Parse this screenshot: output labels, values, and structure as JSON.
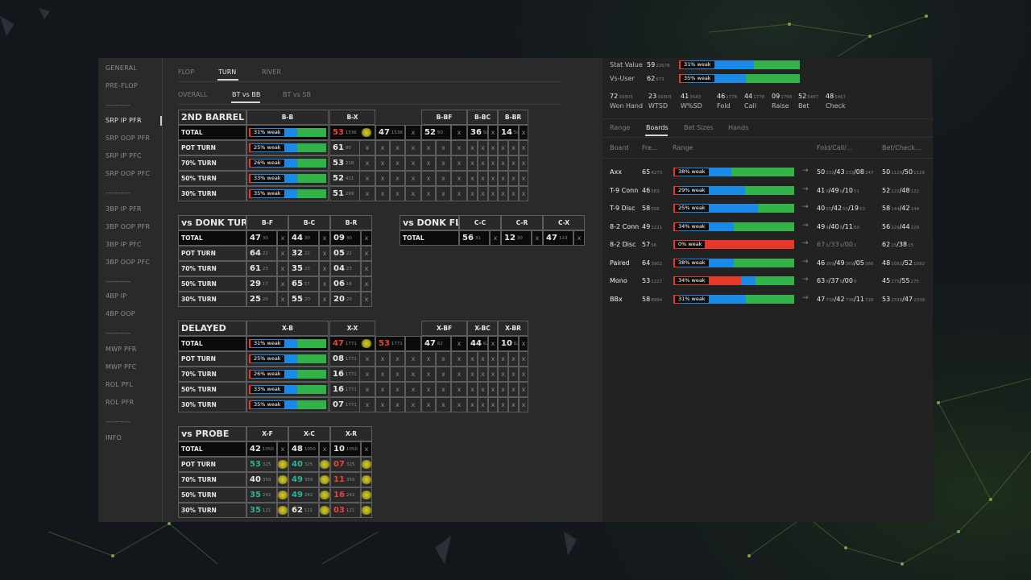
{
  "sidebar": {
    "items": [
      "GENERAL",
      "PRE-FLOP",
      "----------",
      "SRP IP PFR",
      "SRP OOP PFR",
      "SRP IP PFC",
      "SRP OOP PFC",
      "----------",
      "3BP IP PFR",
      "3BP OOP PFR",
      "3BP IP PFC",
      "3BP OOP PFC",
      "----------",
      "4BP IP",
      "4BP OOP",
      "----------",
      "MWP PFR",
      "MWP PFC",
      "ROL PFL",
      "ROL PFR",
      "----------",
      "INFO"
    ],
    "active": "SRP IP PFR"
  },
  "street_tabs": {
    "items": [
      "FLOP",
      "TURN",
      "RIVER"
    ],
    "active": "TURN"
  },
  "matchup_tabs": {
    "items": [
      "OVERALL",
      "BT vs BB",
      "BT vs SB"
    ],
    "active": "BT vs BB"
  },
  "tables": {
    "second_barrel": {
      "title": "2ND BARREL",
      "headers": [
        "B-B",
        "B-X",
        "B-BF",
        "B-BC",
        "B-BR"
      ],
      "rows": [
        {
          "label": "TOTAL",
          "range": {
            "text": "31% weak",
            "r": 0.05,
            "b": 0.57,
            "g": 0.38
          },
          "bb": {
            "v": "53",
            "s": "1536"
          },
          "bx": {
            "v": "47",
            "s": "1536"
          },
          "bbf": {
            "v": "52",
            "s": "50"
          },
          "bbc": {
            "v": "36",
            "s": "50"
          },
          "bbr": {
            "v": "14",
            "s": "50"
          }
        },
        {
          "label": "POT TURN",
          "range": {
            "text": "25% weak",
            "r": 0.05,
            "b": 0.57,
            "g": 0.38
          },
          "bb": {
            "v": "61",
            "s": "80"
          }
        },
        {
          "label": "70% TURN",
          "range": {
            "text": "26% weak",
            "r": 0.05,
            "b": 0.57,
            "g": 0.38
          },
          "bb": {
            "v": "53",
            "s": "218"
          }
        },
        {
          "label": "50% TURN",
          "range": {
            "text": "33% weak",
            "r": 0.05,
            "b": 0.57,
            "g": 0.38
          },
          "bb": {
            "v": "52",
            "s": "421"
          }
        },
        {
          "label": "30% TURN",
          "range": {
            "text": "35% weak",
            "r": 0.05,
            "b": 0.57,
            "g": 0.38
          },
          "bb": {
            "v": "51",
            "s": "299"
          }
        }
      ]
    },
    "donk_turn": {
      "title": "vs DONK TURN",
      "headers": [
        "B-F",
        "B-C",
        "B-R"
      ],
      "rows": [
        {
          "label": "TOTAL",
          "v": [
            [
              "47",
              "30"
            ],
            [
              "44",
              "30"
            ],
            [
              "09",
              "30"
            ]
          ]
        },
        {
          "label": "POT TURN",
          "v": [
            [
              "64",
              "22"
            ],
            [
              "32",
              "22"
            ],
            [
              "05",
              "22"
            ]
          ]
        },
        {
          "label": "70% TURN",
          "v": [
            [
              "61",
              "23"
            ],
            [
              "35",
              "23"
            ],
            [
              "04",
              "23"
            ]
          ]
        },
        {
          "label": "50% TURN",
          "v": [
            [
              "29",
              "17"
            ],
            [
              "65",
              "17"
            ],
            [
              "06",
              "16"
            ]
          ]
        },
        {
          "label": "30% TURN",
          "v": [
            [
              "25",
              "20"
            ],
            [
              "55",
              "20"
            ],
            [
              "20",
              "20"
            ]
          ]
        }
      ]
    },
    "donk_flop": {
      "title": "vs DONK FLOP",
      "headers": [
        "C-C",
        "C-R",
        "C-X"
      ],
      "rows": [
        {
          "label": "TOTAL",
          "v": [
            [
              "56",
              "31"
            ],
            [
              "12",
              "30"
            ],
            [
              "47",
              "113"
            ]
          ]
        }
      ]
    },
    "delayed": {
      "title": "DELAYED",
      "headers": [
        "X-B",
        "X-X",
        "X-BF",
        "X-BC",
        "X-BR"
      ],
      "rows": [
        {
          "label": "TOTAL",
          "range": {
            "text": "31% weak",
            "r": 0.05,
            "b": 0.57,
            "g": 0.38
          },
          "xb": {
            "v": "47",
            "s": "1771"
          },
          "xx": {
            "v": "53",
            "s": "1771"
          },
          "xbf": {
            "v": "47",
            "s": "62"
          },
          "xbc": {
            "v": "44",
            "s": "62"
          },
          "xbr": {
            "v": "10",
            "s": "62"
          }
        },
        {
          "label": "POT TURN",
          "range": {
            "text": "25% weak",
            "r": 0.05,
            "b": 0.57,
            "g": 0.38
          },
          "xb": {
            "v": "08",
            "s": "1771"
          }
        },
        {
          "label": "70% TURN",
          "range": {
            "text": "26% weak",
            "r": 0.05,
            "b": 0.57,
            "g": 0.38
          },
          "xb": {
            "v": "16",
            "s": "1771"
          }
        },
        {
          "label": "50% TURN",
          "range": {
            "text": "33% weak",
            "r": 0.05,
            "b": 0.57,
            "g": 0.38
          },
          "xb": {
            "v": "16",
            "s": "1771"
          }
        },
        {
          "label": "30% TURN",
          "range": {
            "text": "35% weak",
            "r": 0.05,
            "b": 0.57,
            "g": 0.38
          },
          "xb": {
            "v": "07",
            "s": "1771"
          }
        }
      ]
    },
    "probe": {
      "title": "vs PROBE",
      "headers": [
        "X-F",
        "X-C",
        "X-R"
      ],
      "rows": [
        {
          "label": "TOTAL",
          "v": [
            [
              "42",
              "1050"
            ],
            [
              "48",
              "1050"
            ],
            [
              "10",
              "1050"
            ]
          ]
        },
        {
          "label": "POT TURN",
          "v": [
            [
              "53",
              "325"
            ],
            [
              "40",
              "325"
            ],
            [
              "07",
              "325"
            ]
          ]
        },
        {
          "label": "70% TURN",
          "v": [
            [
              "40",
              "359"
            ],
            [
              "49",
              "359"
            ],
            [
              "11",
              "359"
            ]
          ]
        },
        {
          "label": "50% TURN",
          "v": [
            [
              "35",
              "242"
            ],
            [
              "49",
              "242"
            ],
            [
              "16",
              "242"
            ]
          ]
        },
        {
          "label": "30% TURN",
          "v": [
            [
              "35",
              "121"
            ],
            [
              "62",
              "121"
            ],
            [
              "03",
              "121"
            ]
          ]
        }
      ]
    }
  },
  "right": {
    "stat_value": {
      "label": "Stat Value",
      "v": "59",
      "s": "22678",
      "range": {
        "text": "31% weak",
        "r": 0.05,
        "b": 0.57,
        "g": 0.38
      }
    },
    "vs_user": {
      "label": "Vs-User",
      "v": "62",
      "s": "673",
      "range": {
        "text": "35% weak",
        "r": 0.05,
        "b": 0.5,
        "g": 0.45
      }
    },
    "stats": [
      {
        "v": "72",
        "s": "19303",
        "label": "Won Hand"
      },
      {
        "v": "23",
        "s": "19303",
        "label": "WTSD"
      },
      {
        "v": "41",
        "s": "3543",
        "label": "W%SD"
      },
      {
        "v": "46",
        "s": "1778",
        "label": "Fold"
      },
      {
        "v": "44",
        "s": "1778",
        "label": "Call"
      },
      {
        "v": "09",
        "s": "1758",
        "label": "Raise"
      },
      {
        "v": "52",
        "s": "5467",
        "label": "Bet"
      },
      {
        "v": "48",
        "s": "5467",
        "label": "Check"
      }
    ],
    "tabs": {
      "items": [
        "Range",
        "Boards",
        "Bet Sizes",
        "Hands"
      ],
      "active": "Boards"
    },
    "columns": [
      "Board",
      "Fre...",
      "Range",
      "Fold/Call/...",
      "Bet/Check..."
    ],
    "boards": [
      {
        "name": "Axx",
        "freq": "65",
        "fs": "4273",
        "range": {
          "text": "38% weak",
          "r": 0.05,
          "b": 0.43,
          "g": 0.52
        },
        "fcr": [
          [
            "50",
            "232"
          ],
          [
            "43",
            "232"
          ],
          [
            "08",
            "247"
          ]
        ],
        "bc": [
          [
            "50",
            "1129"
          ],
          [
            "50",
            "1129"
          ]
        ]
      },
      {
        "name": "T-9 Conn",
        "freq": "46",
        "fs": "583",
        "range": {
          "text": "29% weak",
          "r": 0.05,
          "b": 0.54,
          "g": 0.41
        },
        "fcr": [
          [
            "41",
            "9"
          ],
          [
            "49",
            "9"
          ],
          [
            "10",
            "51"
          ]
        ],
        "bc": [
          [
            "52",
            "122"
          ],
          [
            "48",
            "122"
          ]
        ]
      },
      {
        "name": "T-9 Disc",
        "freq": "58",
        "fs": "558",
        "range": {
          "text": "25% weak",
          "r": 0.05,
          "b": 0.65,
          "g": 0.3
        },
        "fcr": [
          [
            "40",
            "55"
          ],
          [
            "42",
            "55"
          ],
          [
            "19",
            "53"
          ]
        ],
        "bc": [
          [
            "58",
            "144"
          ],
          [
            "42",
            "144"
          ]
        ]
      },
      {
        "name": "8-2 Conn",
        "freq": "49",
        "fs": "1221",
        "range": {
          "text": "34% weak",
          "r": 0.05,
          "b": 0.45,
          "g": 0.5
        },
        "fcr": [
          [
            "49",
            "9"
          ],
          [
            "40",
            "8"
          ],
          [
            "11",
            "60"
          ]
        ],
        "bc": [
          [
            "56",
            "229"
          ],
          [
            "44",
            "229"
          ]
        ]
      },
      {
        "name": "8-2 Disc",
        "freq": "57",
        "fs": "56",
        "range": {
          "text": "0% weak",
          "r": 1.0,
          "b": 0,
          "g": 0
        },
        "fcr": [
          [
            "67",
            "1"
          ],
          [
            "33",
            "1"
          ],
          [
            "00",
            "1"
          ]
        ],
        "dim": true,
        "bc": [
          [
            "62",
            "15"
          ],
          [
            "38",
            "15"
          ]
        ]
      },
      {
        "name": "Paired",
        "freq": "64",
        "fs": "3902",
        "range": {
          "text": "38% weak",
          "r": 0.05,
          "b": 0.45,
          "g": 0.5
        },
        "fcr": [
          [
            "46",
            "369"
          ],
          [
            "49",
            "369"
          ],
          [
            "05",
            "366"
          ]
        ],
        "bc": [
          [
            "48",
            "1092"
          ],
          [
            "52",
            "1092"
          ]
        ]
      },
      {
        "name": "Mono",
        "freq": "53",
        "fs": "1227",
        "range": {
          "text": "34% weak",
          "r": 0.56,
          "b": 0.12,
          "g": 0.32
        },
        "fcr": [
          [
            "63",
            "8"
          ],
          [
            "37",
            "8"
          ],
          [
            "00",
            "8"
          ]
        ],
        "bc": [
          [
            "45",
            "275"
          ],
          [
            "55",
            "275"
          ]
        ]
      },
      {
        "name": "BBx",
        "freq": "58",
        "fs": "8994",
        "range": {
          "text": "31% weak",
          "r": 0.05,
          "b": 0.55,
          "g": 0.4
        },
        "fcr": [
          [
            "47",
            "738"
          ],
          [
            "42",
            "738"
          ],
          [
            "11",
            "728"
          ]
        ],
        "bc": [
          [
            "53",
            "2338"
          ],
          [
            "47",
            "2338"
          ]
        ]
      }
    ]
  }
}
